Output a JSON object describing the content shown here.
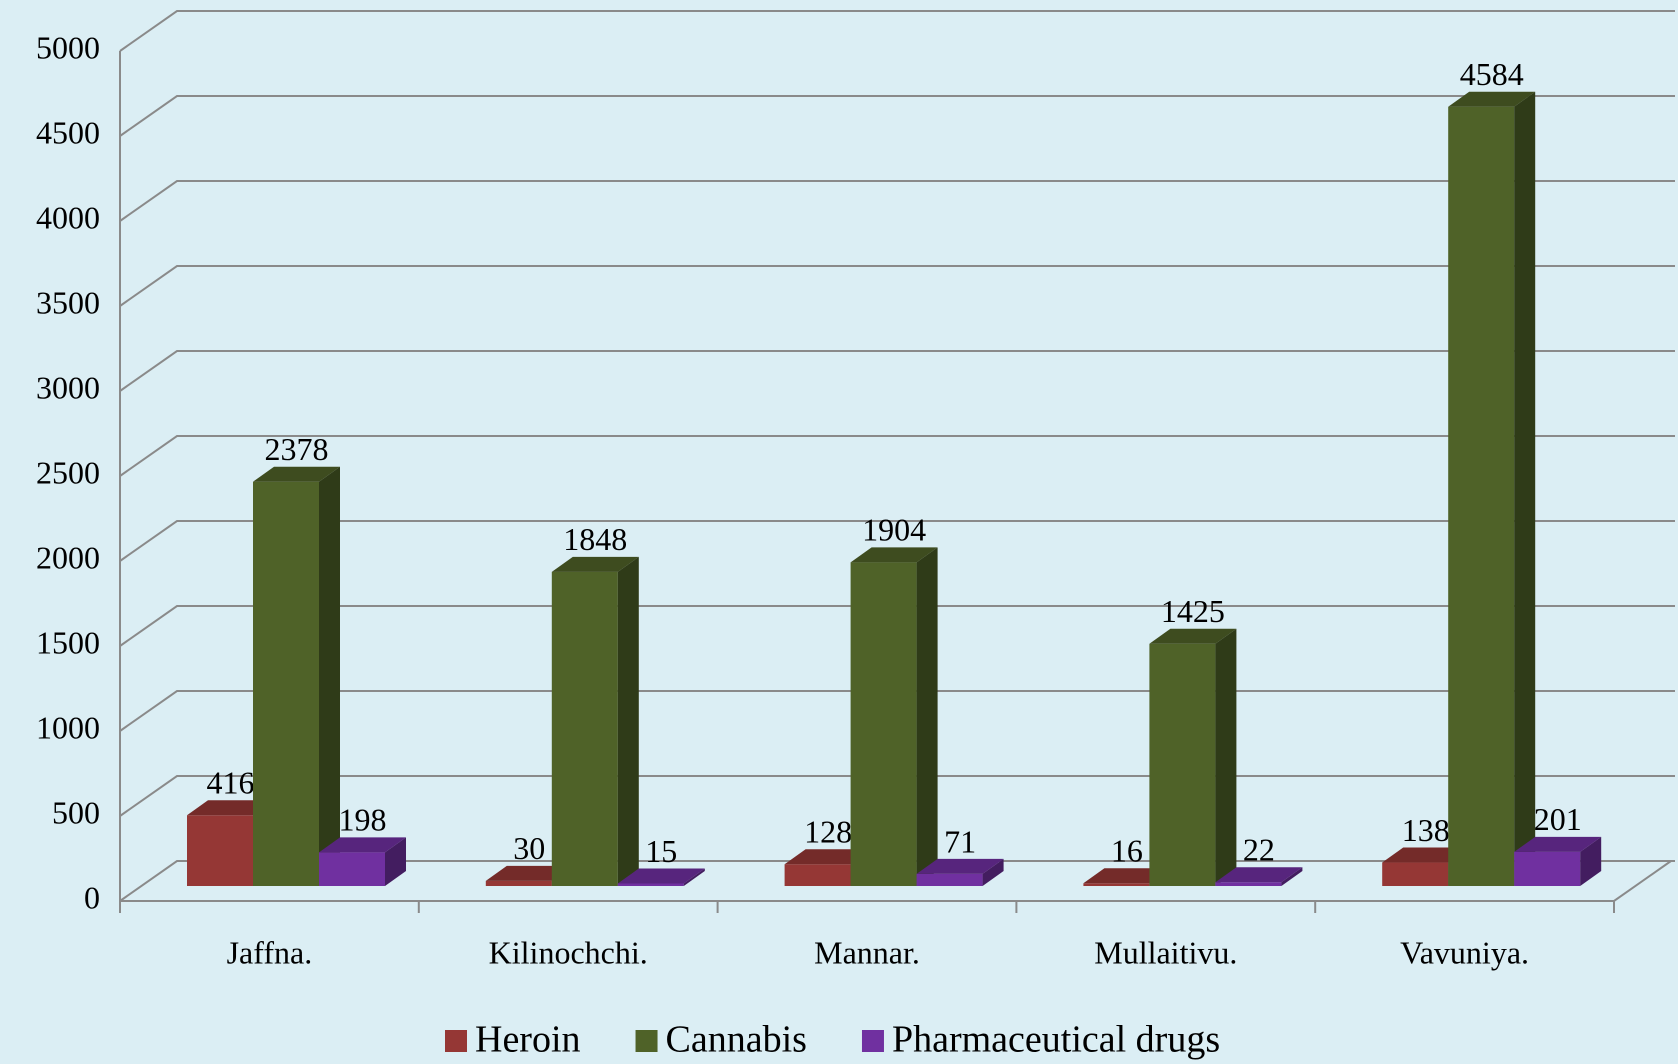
{
  "chart_data": {
    "type": "bar3d",
    "categories": [
      "Jaffna.",
      "Kilinochchi.",
      "Mannar.",
      "Mullaitivu.",
      "Vavuniya."
    ],
    "series": [
      {
        "name": "Heroin",
        "color": "#953735",
        "values": [
          416,
          30,
          128,
          16,
          138
        ]
      },
      {
        "name": "Cannabis",
        "color": "#4f6228",
        "values": [
          2378,
          1848,
          1904,
          1425,
          4584
        ]
      },
      {
        "name": "Pharmaceutical drugs",
        "color": "#7030a0",
        "values": [
          198,
          15,
          71,
          22,
          201
        ]
      }
    ],
    "ylim": [
      0,
      5000
    ],
    "yticks": [
      0,
      500,
      1000,
      1500,
      2000,
      2500,
      3000,
      3500,
      4000,
      4500,
      5000
    ],
    "grid": true,
    "legend": "bottom"
  }
}
